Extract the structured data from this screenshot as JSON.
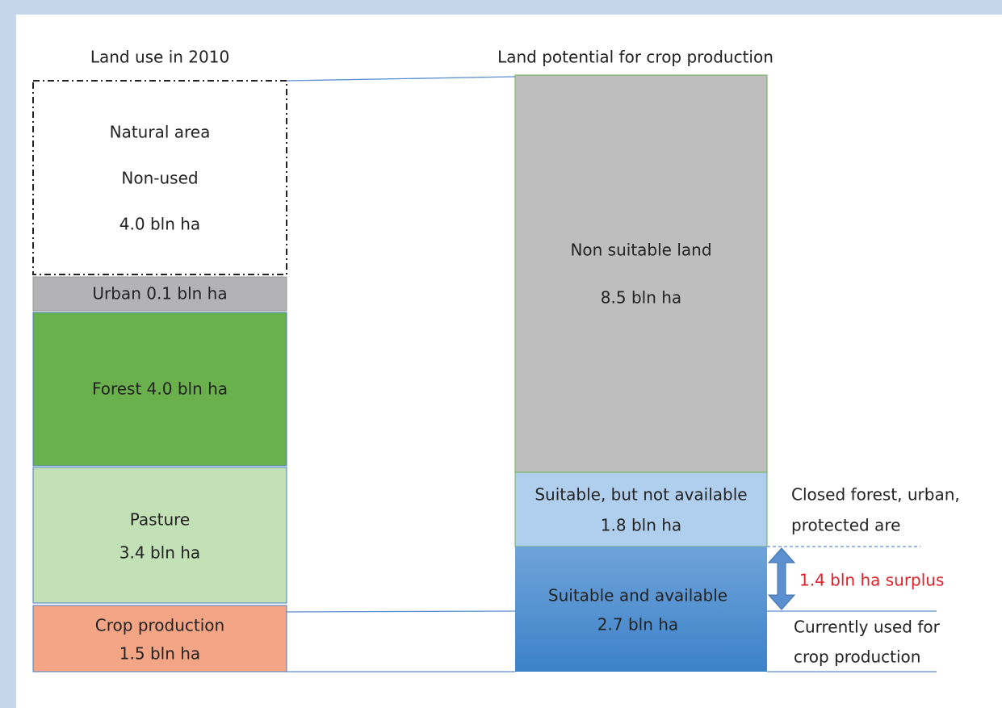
{
  "titles": {
    "left": "Land use in 2010",
    "right": "Land potential for crop production"
  },
  "left_blocks": [
    {
      "lines": [
        "Natural area",
        "Non-used",
        "4.0 bln ha"
      ]
    },
    {
      "lines": [
        "Urban 0.1 bln ha"
      ]
    },
    {
      "lines": [
        "Forest 4.0 bln ha"
      ]
    },
    {
      "lines": [
        "Pasture",
        "3.4 bln ha"
      ]
    },
    {
      "lines": [
        "Crop production",
        "1.5 bln ha"
      ]
    }
  ],
  "right_blocks": [
    {
      "lines": [
        "Non suitable land",
        "8.5 bln ha"
      ]
    },
    {
      "lines": [
        "Suitable, but not available",
        "1.8 bln ha"
      ]
    },
    {
      "lines": [
        "Suitable and available",
        "2.7 bln ha"
      ]
    }
  ],
  "notes": {
    "closed": [
      "Closed forest, urban,",
      "protected are"
    ],
    "surplus": "1.4 bln ha surplus",
    "current": [
      "Currently used for",
      "crop production"
    ]
  }
}
